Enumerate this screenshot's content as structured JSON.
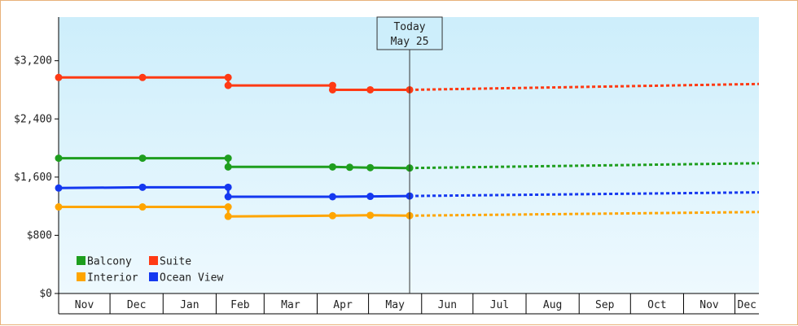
{
  "chart_data": {
    "type": "line",
    "title": "",
    "xlabel": "",
    "ylabel": "",
    "x_axis": {
      "start": "2022-11-01",
      "end": "2023-12-15",
      "month_labels": [
        "Nov",
        "Dec",
        "Jan",
        "Feb",
        "Mar",
        "Apr",
        "May",
        "Jun",
        "Jul",
        "Aug",
        "Sep",
        "Oct",
        "Nov",
        "Dec"
      ]
    },
    "y_axis": {
      "min": 0,
      "max": 3800,
      "ticks": [
        0,
        800,
        1600,
        2400,
        3200
      ],
      "tick_labels": [
        "$0",
        "$800",
        "$1,600",
        "$2,400",
        "$3,200"
      ]
    },
    "today": {
      "date": "2023-05-25",
      "label_line1": "Today",
      "label_line2": "May 25"
    },
    "grid": false,
    "legend_position": "bottom-left",
    "background": {
      "top": "#cdeefb",
      "bottom": "#eef9fe"
    },
    "series": [
      {
        "name": "Balcony",
        "color": "#1e9e1e",
        "points": [
          {
            "x": "2022-11-01",
            "y": 1860,
            "marker": true
          },
          {
            "x": "2022-12-20",
            "y": 1860,
            "marker": true
          },
          {
            "x": "2023-02-08",
            "y": 1860,
            "marker": true
          },
          {
            "x": "2023-02-08",
            "y": 1740,
            "marker": true
          },
          {
            "x": "2023-04-10",
            "y": 1740,
            "marker": true
          },
          {
            "x": "2023-04-20",
            "y": 1735,
            "marker": true
          },
          {
            "x": "2023-05-02",
            "y": 1730,
            "marker": true
          },
          {
            "x": "2023-05-25",
            "y": 1725,
            "marker": true
          }
        ],
        "forecast": [
          {
            "x": "2023-05-25",
            "y": 1725
          },
          {
            "x": "2023-12-15",
            "y": 1790
          }
        ]
      },
      {
        "name": "Suite",
        "color": "#ff3a14",
        "points": [
          {
            "x": "2022-11-01",
            "y": 2970,
            "marker": true
          },
          {
            "x": "2022-12-20",
            "y": 2970,
            "marker": true
          },
          {
            "x": "2023-02-08",
            "y": 2970,
            "marker": true
          },
          {
            "x": "2023-02-08",
            "y": 2860,
            "marker": true
          },
          {
            "x": "2023-04-10",
            "y": 2860,
            "marker": true
          },
          {
            "x": "2023-04-10",
            "y": 2800,
            "marker": true
          },
          {
            "x": "2023-05-02",
            "y": 2800,
            "marker": true
          },
          {
            "x": "2023-05-25",
            "y": 2800,
            "marker": true
          }
        ],
        "forecast": [
          {
            "x": "2023-05-25",
            "y": 2800
          },
          {
            "x": "2023-12-15",
            "y": 2880
          }
        ]
      },
      {
        "name": "Interior",
        "color": "#ffa500",
        "points": [
          {
            "x": "2022-11-01",
            "y": 1190,
            "marker": true
          },
          {
            "x": "2022-12-20",
            "y": 1190,
            "marker": true
          },
          {
            "x": "2023-02-08",
            "y": 1190,
            "marker": true
          },
          {
            "x": "2023-02-08",
            "y": 1060,
            "marker": true
          },
          {
            "x": "2023-04-10",
            "y": 1070,
            "marker": true
          },
          {
            "x": "2023-05-02",
            "y": 1075,
            "marker": true
          },
          {
            "x": "2023-05-25",
            "y": 1070,
            "marker": true
          }
        ],
        "forecast": [
          {
            "x": "2023-05-25",
            "y": 1070
          },
          {
            "x": "2023-12-15",
            "y": 1120
          }
        ]
      },
      {
        "name": "Ocean View",
        "color": "#1438f0",
        "points": [
          {
            "x": "2022-11-01",
            "y": 1450,
            "marker": true
          },
          {
            "x": "2022-12-20",
            "y": 1460,
            "marker": true
          },
          {
            "x": "2023-02-08",
            "y": 1460,
            "marker": true
          },
          {
            "x": "2023-02-08",
            "y": 1330,
            "marker": true
          },
          {
            "x": "2023-04-10",
            "y": 1330,
            "marker": true
          },
          {
            "x": "2023-05-02",
            "y": 1335,
            "marker": true
          },
          {
            "x": "2023-05-25",
            "y": 1340,
            "marker": true
          }
        ],
        "forecast": [
          {
            "x": "2023-05-25",
            "y": 1340
          },
          {
            "x": "2023-12-15",
            "y": 1390
          }
        ]
      }
    ],
    "legend": [
      {
        "name": "Balcony",
        "color": "#1e9e1e"
      },
      {
        "name": "Suite",
        "color": "#ff3a14"
      },
      {
        "name": "Interior",
        "color": "#ffa500"
      },
      {
        "name": "Ocean View",
        "color": "#1438f0"
      }
    ]
  }
}
